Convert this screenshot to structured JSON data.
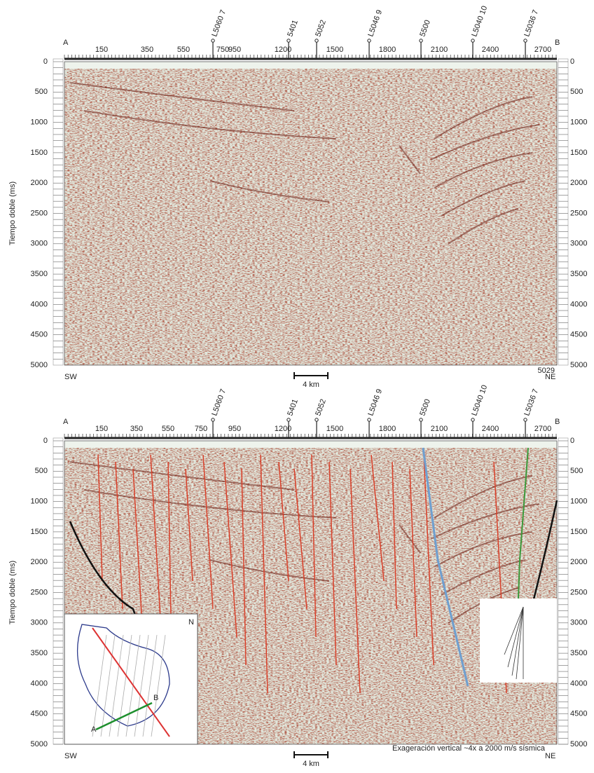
{
  "panels": [
    {
      "left_label": "A",
      "right_label": "B",
      "cdp_ticks": [
        "150",
        "350",
        "550",
        "750",
        "950",
        "1200",
        "1500",
        "1800",
        "2100",
        "2400",
        "2700"
      ],
      "wells": [
        "L5060 7",
        "5401",
        "5052",
        "L5046 9",
        "5500",
        "L5040 10",
        "L5036 7"
      ],
      "y_label": "Tiempo doble (ms)",
      "y_ticks": [
        0,
        500,
        1000,
        1500,
        2000,
        2500,
        3000,
        3500,
        4000,
        4500,
        5000
      ],
      "bottom_left": "SW",
      "bottom_right": "NE",
      "scale_label": "4 km",
      "corner_label": "5029"
    },
    {
      "left_label": "A",
      "right_label": "B",
      "cdp_ticks": [
        "150",
        "350",
        "550",
        "750",
        "950",
        "1200",
        "1500",
        "1800",
        "2100",
        "2400",
        "2700"
      ],
      "wells": [
        "L5060 7",
        "5401",
        "5052",
        "L5046 9",
        "5500",
        "L5040 10",
        "L5036 7"
      ],
      "y_label": "Tiempo doble (ms)",
      "y_ticks": [
        0,
        500,
        1000,
        1500,
        2000,
        2500,
        3000,
        3500,
        4000,
        4500,
        5000
      ],
      "bottom_left": "SW",
      "bottom_right": "NE",
      "scale_label": "4 km",
      "note": "Exageración vertical ~4x a 2000 m/s sísmica",
      "map_labels": [
        "N",
        "A",
        "B"
      ]
    }
  ]
}
